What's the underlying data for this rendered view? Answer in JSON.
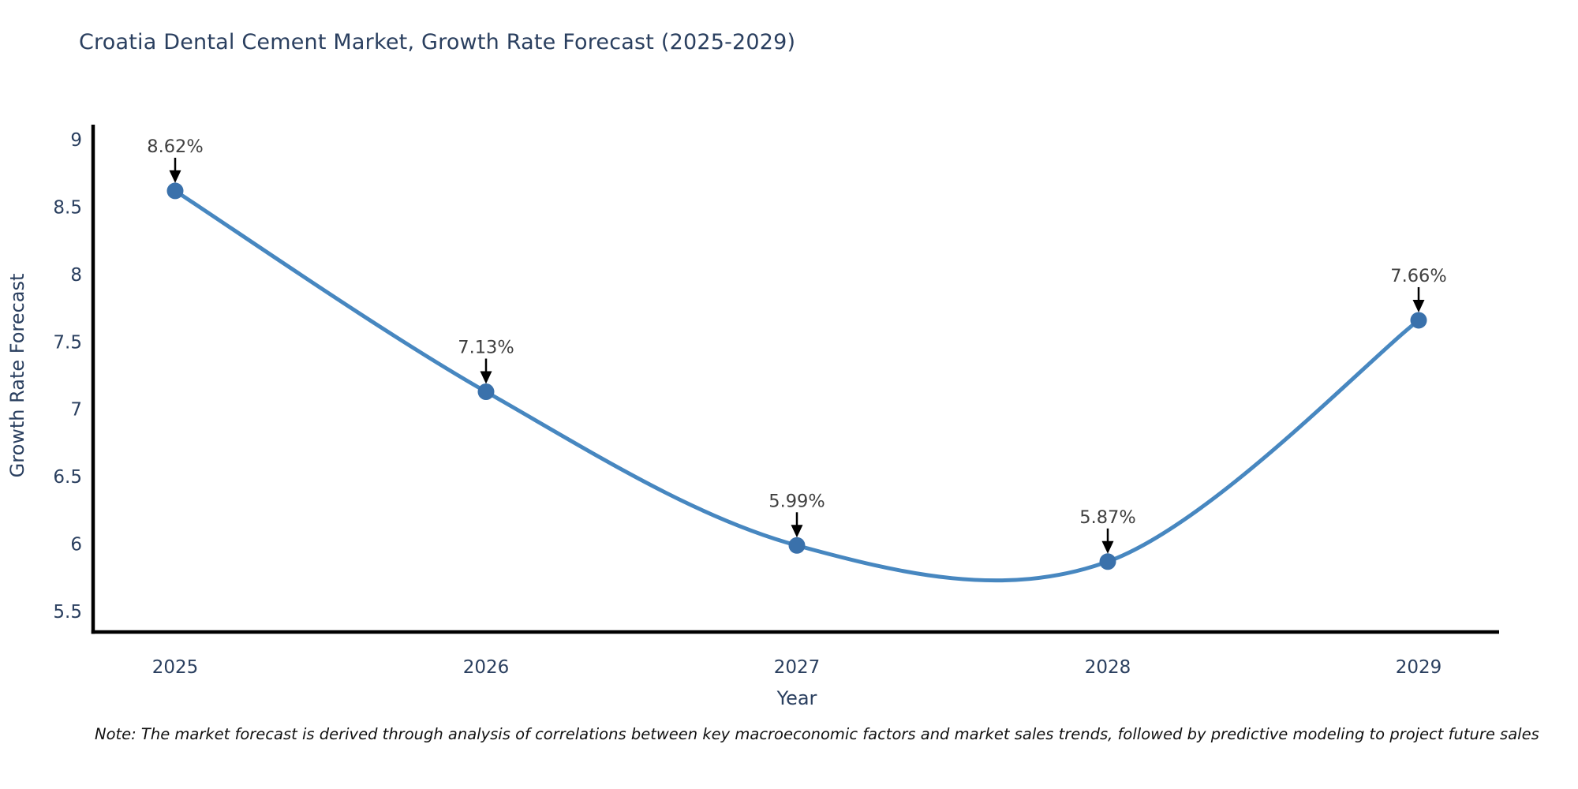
{
  "title": "Croatia Dental Cement Market, Growth Rate Forecast (2025-2029)",
  "note": "Note: The market forecast is derived through analysis of correlations between key macroeconomic factors and market sales trends, followed by predictive modeling to project future sales",
  "chart_data": {
    "type": "line",
    "line_shape": "spline",
    "title": "Croatia Dental Cement Market, Growth Rate Forecast (2025-2029)",
    "xlabel": "Year",
    "ylabel": "Growth Rate Forecast",
    "x": [
      2025,
      2026,
      2027,
      2028,
      2029
    ],
    "values": [
      8.62,
      7.13,
      5.99,
      5.87,
      7.66
    ],
    "point_labels": [
      "8.62%",
      "7.13%",
      "5.99%",
      "5.87%",
      "7.66%"
    ],
    "xticks": [
      2025,
      2026,
      2027,
      2028,
      2029
    ],
    "yticks": [
      5.5,
      6,
      6.5,
      7,
      7.5,
      8,
      8.5,
      9
    ],
    "ylim": [
      5.35,
      9.12
    ],
    "grid": false,
    "legend": "none",
    "colors": {
      "line": "#4787c0",
      "marker": "#3a71ab",
      "axis": "#000000",
      "tick_label": "#2a3f5f",
      "axis_title": "#2a3f5f",
      "annotation_text": "#404040",
      "annotation_arrow": "#000000",
      "title": "#2a3f5f",
      "note": "#111111",
      "background": "#ffffff"
    }
  }
}
